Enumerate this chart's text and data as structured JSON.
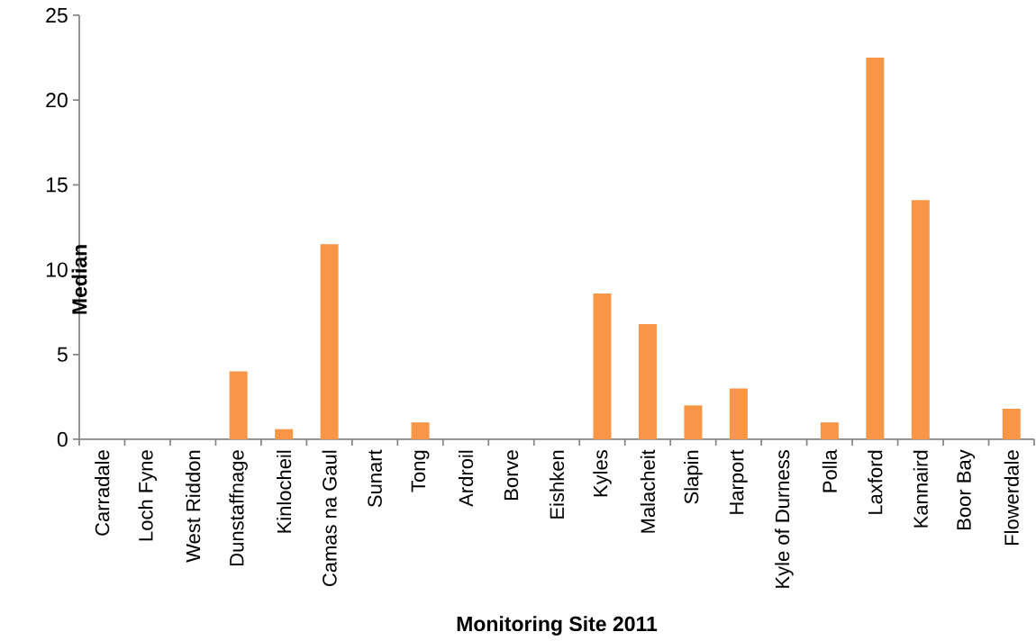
{
  "chart_data": {
    "type": "bar",
    "xlabel": "Monitoring Site 2011",
    "ylabel": "Median",
    "categories": [
      "Carradale",
      "Loch Fyne",
      "West Riddon",
      "Dunstaffnage",
      "Kinlocheil",
      "Camas na Gaul",
      "Sunart",
      "Tong",
      "Ardroil",
      "Borve",
      "Eishken",
      "Kyles",
      "Malacheit",
      "Slapin",
      "Harport",
      "Kyle of Durness",
      "Polla",
      "Laxford",
      "Kannaird",
      "Boor Bay",
      "Flowerdale"
    ],
    "values": [
      0,
      0,
      0,
      4,
      0.6,
      11.5,
      0,
      1,
      0,
      0,
      0,
      8.6,
      6.8,
      2,
      3,
      0,
      1,
      22.5,
      14.1,
      0,
      1.8
    ],
    "color": "#f79646",
    "ylim": [
      0,
      25
    ],
    "yticks": [
      0,
      5,
      10,
      15,
      20,
      25
    ]
  }
}
